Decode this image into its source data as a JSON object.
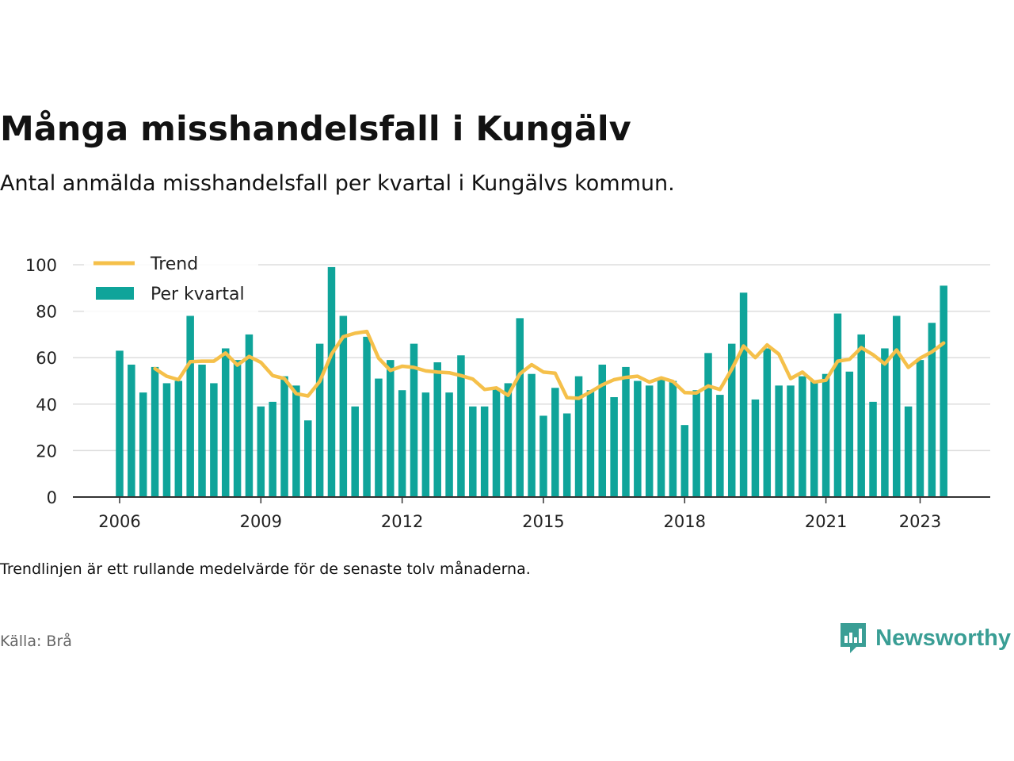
{
  "title": "Många misshandelsfall i Kungälv",
  "subtitle": "Antal anmälda misshandelsfall per kvartal i Kungälvs kommun.",
  "footnote": "Trendlinjen är ett rullande medelvärde för de senaste tolv månaderna.",
  "source": "Källa: Brå",
  "brand": {
    "name": "Newsworthy",
    "icon": "bar-chart-speech-bubble-icon"
  },
  "colors": {
    "bars": "#0fa49a",
    "trend": "#f5c04a",
    "grid": "#dddddd",
    "axis": "#333333"
  },
  "chart_data": {
    "type": "bar",
    "ylim": [
      0,
      100
    ],
    "yticks": [
      0,
      20,
      40,
      60,
      80,
      100
    ],
    "xticks": [
      {
        "label": "2006",
        "index": 0
      },
      {
        "label": "2009",
        "index": 12
      },
      {
        "label": "2012",
        "index": 24
      },
      {
        "label": "2015",
        "index": 36
      },
      {
        "label": "2018",
        "index": 48
      },
      {
        "label": "2021",
        "index": 60
      },
      {
        "label": "2023",
        "index": 68
      }
    ],
    "legend_position": "top-left",
    "grid": true,
    "series": [
      {
        "name": "Per kvartal",
        "kind": "bar",
        "values": [
          63,
          57,
          45,
          56,
          49,
          50,
          78,
          57,
          49,
          64,
          59,
          70,
          39,
          41,
          52,
          48,
          33,
          66,
          99,
          78,
          39,
          69,
          51,
          59,
          46,
          66,
          45,
          58,
          45,
          61,
          39,
          39,
          47,
          49,
          77,
          53,
          35,
          47,
          36,
          52,
          46,
          57,
          43,
          56,
          50,
          48,
          51,
          50,
          31,
          46,
          62,
          44,
          66,
          88,
          42,
          64,
          48,
          48,
          52,
          50,
          53,
          79,
          54,
          70,
          41,
          64,
          78,
          39,
          59,
          75,
          91
        ]
      },
      {
        "name": "Trend",
        "kind": "line",
        "start_index": 3,
        "values": [
          55.3,
          52.0,
          50.5,
          58.3,
          58.5,
          58.5,
          62.0,
          56.8,
          60.5,
          58.0,
          52.3,
          51.0,
          44.5,
          43.5,
          49.8,
          61.5,
          69.0,
          70.5,
          71.3,
          59.8,
          54.5,
          56.3,
          55.8,
          54.3,
          53.8,
          53.5,
          52.3,
          50.8,
          46.3,
          47.0,
          43.8,
          53.0,
          57.0,
          53.8,
          53.3,
          42.8,
          42.5,
          45.3,
          48.3,
          50.5,
          51.5,
          52.0,
          49.5,
          51.3,
          49.8,
          45.0,
          44.8,
          47.8,
          46.3,
          55.0,
          65.0,
          60.0,
          65.5,
          61.5,
          51.0,
          53.8,
          49.5,
          50.3,
          58.5,
          59.3,
          64.3,
          61.3,
          57.3,
          63.3,
          55.8,
          59.8,
          62.5,
          66.3
        ]
      }
    ]
  }
}
